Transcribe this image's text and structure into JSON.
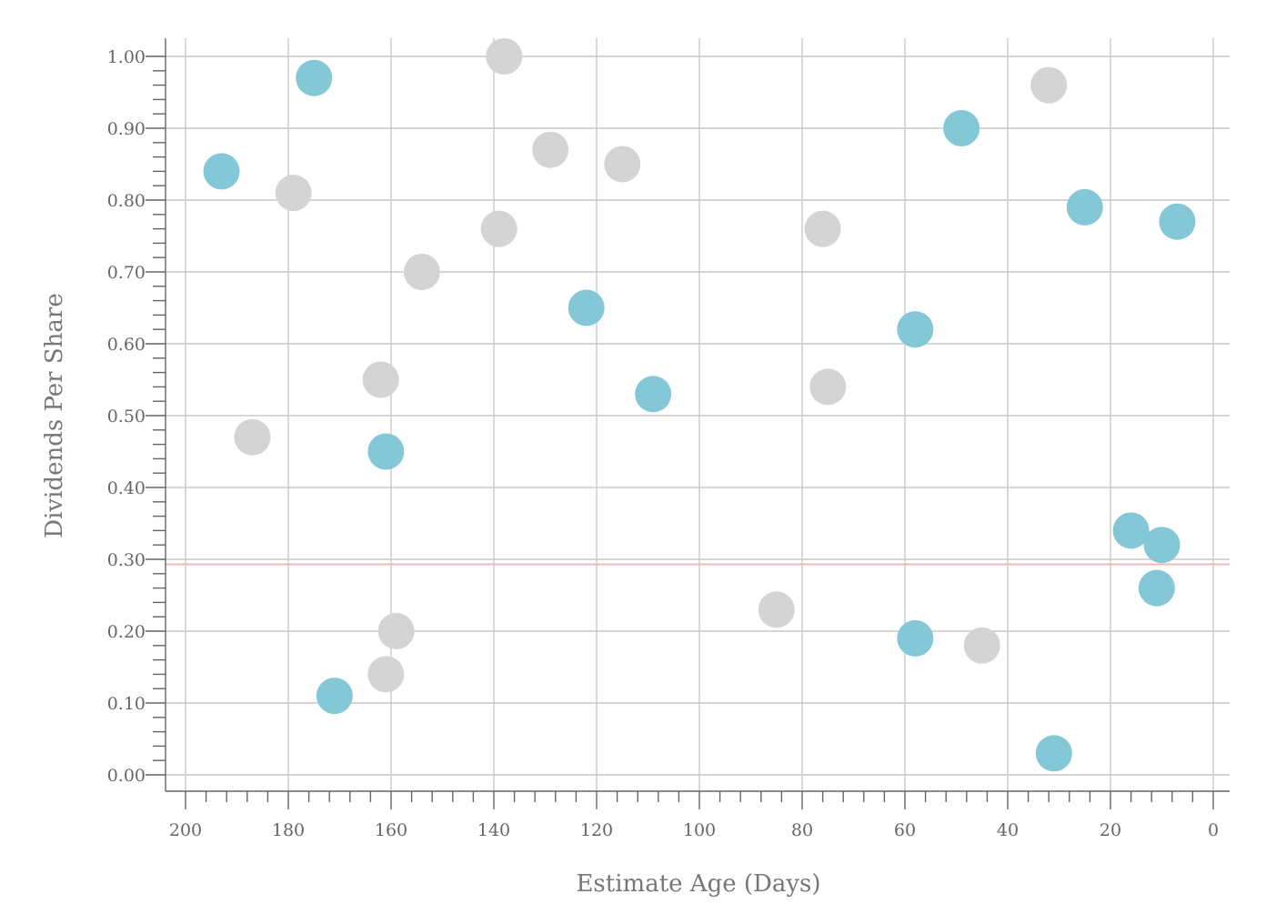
{
  "chart_data": {
    "type": "scatter",
    "title": "",
    "xlabel": "Estimate Age (Days)",
    "ylabel": "Dividends Per Share",
    "xlim": [
      200,
      0
    ],
    "ylim": [
      0,
      1.0
    ],
    "x_ticks": [
      200,
      180,
      160,
      140,
      120,
      100,
      80,
      60,
      40,
      20,
      0
    ],
    "x_tick_labels": [
      "200",
      "180",
      "160",
      "140",
      "120",
      "100",
      "80",
      "60",
      "40",
      "20",
      "0"
    ],
    "y_ticks": [
      0,
      0.1,
      0.2,
      0.3,
      0.4,
      0.5,
      0.6,
      0.7,
      0.8,
      0.9,
      1.0
    ],
    "y_tick_labels": [
      "0.00",
      "0.10",
      "0.20",
      "0.30",
      "0.40",
      "0.50",
      "0.60",
      "0.70",
      "0.80",
      "0.90",
      "1.00"
    ],
    "grid": true,
    "legend": "none",
    "reference_line": {
      "y": 0.293,
      "color": "#f4b6b6"
    },
    "series": [
      {
        "color": "#84c8d8",
        "points": [
          {
            "x": 193,
            "y": 0.84
          },
          {
            "x": 175,
            "y": 0.97
          },
          {
            "x": 171,
            "y": 0.11
          },
          {
            "x": 161,
            "y": 0.45
          },
          {
            "x": 122,
            "y": 0.65
          },
          {
            "x": 109,
            "y": 0.53
          },
          {
            "x": 58,
            "y": 0.62
          },
          {
            "x": 58,
            "y": 0.19
          },
          {
            "x": 49,
            "y": 0.9
          },
          {
            "x": 31,
            "y": 0.03
          },
          {
            "x": 25,
            "y": 0.79
          },
          {
            "x": 16,
            "y": 0.34
          },
          {
            "x": 10,
            "y": 0.32
          },
          {
            "x": 11,
            "y": 0.26
          },
          {
            "x": 7,
            "y": 0.77
          }
        ]
      },
      {
        "color": "#d4d4d4",
        "points": [
          {
            "x": 187,
            "y": 0.47
          },
          {
            "x": 179,
            "y": 0.81
          },
          {
            "x": 162,
            "y": 0.55
          },
          {
            "x": 159,
            "y": 0.2
          },
          {
            "x": 161,
            "y": 0.14
          },
          {
            "x": 154,
            "y": 0.7
          },
          {
            "x": 139,
            "y": 0.76
          },
          {
            "x": 138,
            "y": 1.0
          },
          {
            "x": 129,
            "y": 0.87
          },
          {
            "x": 115,
            "y": 0.85
          },
          {
            "x": 85,
            "y": 0.23
          },
          {
            "x": 76,
            "y": 0.76
          },
          {
            "x": 75,
            "y": 0.54
          },
          {
            "x": 45,
            "y": 0.18
          },
          {
            "x": 32,
            "y": 0.96
          }
        ]
      }
    ]
  }
}
